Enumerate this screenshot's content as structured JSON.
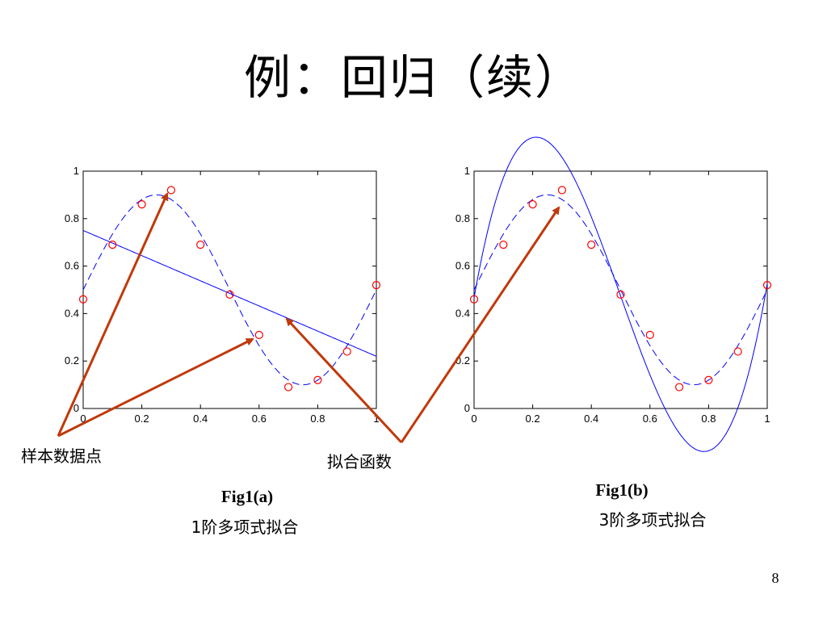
{
  "slide": {
    "title": "例：回归（续）",
    "page_number": "8"
  },
  "annotations": {
    "sample_points_label": "样本数据点",
    "fit_function_label": "拟合函数"
  },
  "captions": [
    {
      "title": "Fig1(a)",
      "subtitle": "1阶多项式拟合"
    },
    {
      "title": "Fig1(b)",
      "subtitle": "3阶多项式拟合"
    }
  ],
  "colors": {
    "curve": "#0000ff",
    "points": "#ff0000",
    "arrow": "#c0390b",
    "axis": "#000000"
  },
  "chart_data": [
    {
      "type": "scatter",
      "title": "",
      "xlabel": "",
      "ylabel": "",
      "xlim": [
        0,
        1
      ],
      "ylim": [
        0,
        1
      ],
      "x_ticks": [
        "0",
        "0.2",
        "0.4",
        "0.6",
        "0.8",
        "1"
      ],
      "y_ticks": [
        "0",
        "0.2",
        "0.4",
        "0.6",
        "0.8",
        "1"
      ],
      "grid": false,
      "points": {
        "x": [
          0,
          0.1,
          0.2,
          0.3,
          0.4,
          0.5,
          0.6,
          0.7,
          0.8,
          0.9,
          1.0
        ],
        "y": [
          0.46,
          0.69,
          0.86,
          0.92,
          0.69,
          0.48,
          0.31,
          0.09,
          0.12,
          0.24,
          0.52
        ]
      },
      "true_curve": {
        "style": "dashed",
        "function": "0.5 + 0.4*sin(2*pi*x)"
      },
      "fit_curve": {
        "style": "solid",
        "degree": 1,
        "coefficients": [
          0.75,
          -0.53
        ]
      }
    },
    {
      "type": "scatter",
      "title": "",
      "xlabel": "",
      "ylabel": "",
      "xlim": [
        0,
        1
      ],
      "ylim": [
        0,
        1
      ],
      "x_ticks": [
        "0",
        "0.2",
        "0.4",
        "0.6",
        "0.8",
        "1"
      ],
      "y_ticks": [
        "0",
        "0.2",
        "0.4",
        "0.6",
        "0.8",
        "1"
      ],
      "grid": false,
      "points": {
        "x": [
          0,
          0.1,
          0.2,
          0.3,
          0.4,
          0.5,
          0.6,
          0.7,
          0.8,
          0.9,
          1.0
        ],
        "y": [
          0.46,
          0.69,
          0.86,
          0.92,
          0.69,
          0.48,
          0.31,
          0.09,
          0.12,
          0.24,
          0.52
        ]
      },
      "true_curve": {
        "style": "dashed",
        "function": "0.5 + 0.4*sin(2*pi*x)"
      },
      "fit_curve": {
        "style": "solid",
        "degree": 3,
        "coefficients": [
          0.466,
          7.03,
          -21.09,
          14.12
        ]
      }
    }
  ]
}
